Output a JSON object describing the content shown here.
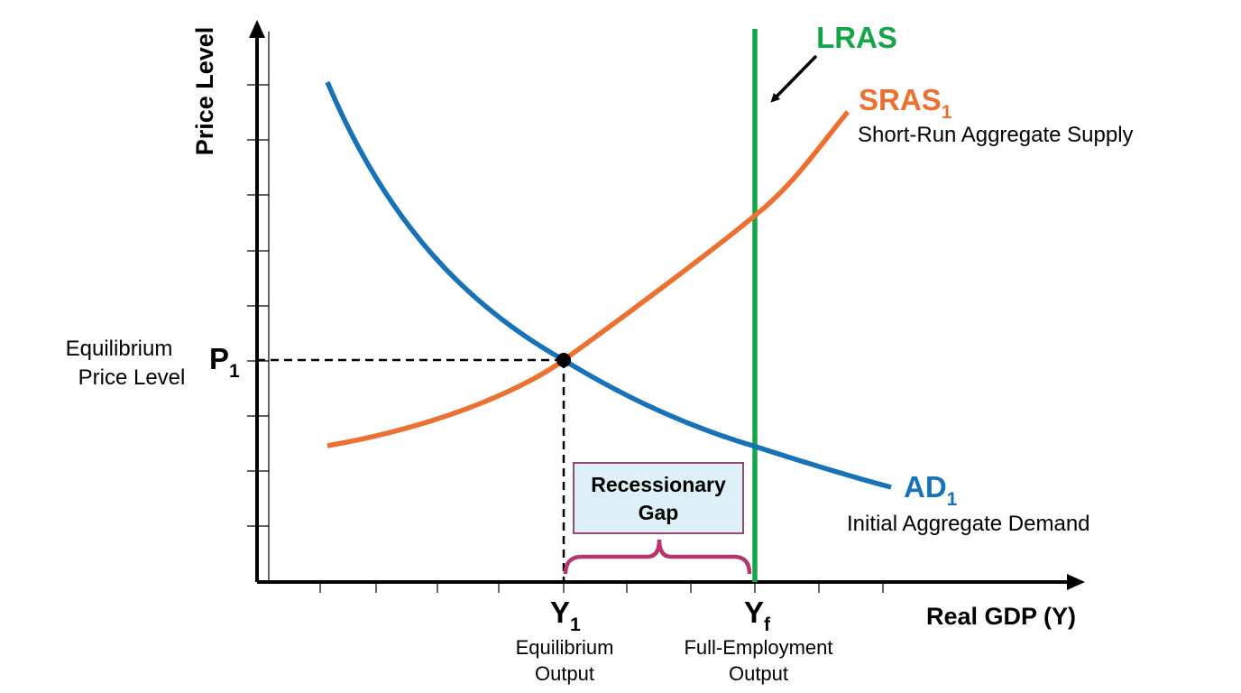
{
  "axes": {
    "y_label": "Price Level",
    "x_label": "Real GDP (Y)"
  },
  "curves": {
    "lras": {
      "label": "LRAS",
      "color": "#13a548"
    },
    "sras": {
      "label_main": "SRAS",
      "label_sub": "1",
      "description": "Short-Run Aggregate Supply",
      "color": "#ec7030"
    },
    "ad": {
      "label_main": "AD",
      "label_sub": "1",
      "description": "Initial Aggregate Demand",
      "color": "#1872b8"
    }
  },
  "equilibrium": {
    "price_main": "P",
    "price_sub": "1",
    "price_desc_line1": "Equilibrium",
    "price_desc_line2": "Price Level",
    "output_main": "Y",
    "output_sub": "1",
    "output_desc_line1": "Equilibrium",
    "output_desc_line2": "Output"
  },
  "full_employment": {
    "main": "Y",
    "sub": "f",
    "desc_line1": "Full-Employment",
    "desc_line2": "Output"
  },
  "gap": {
    "line1": "Recessionary",
    "line2": "Gap",
    "brace_color": "#b3366e",
    "box_fill": "#ddf0f8",
    "box_stroke": "#8c3a5e"
  }
}
